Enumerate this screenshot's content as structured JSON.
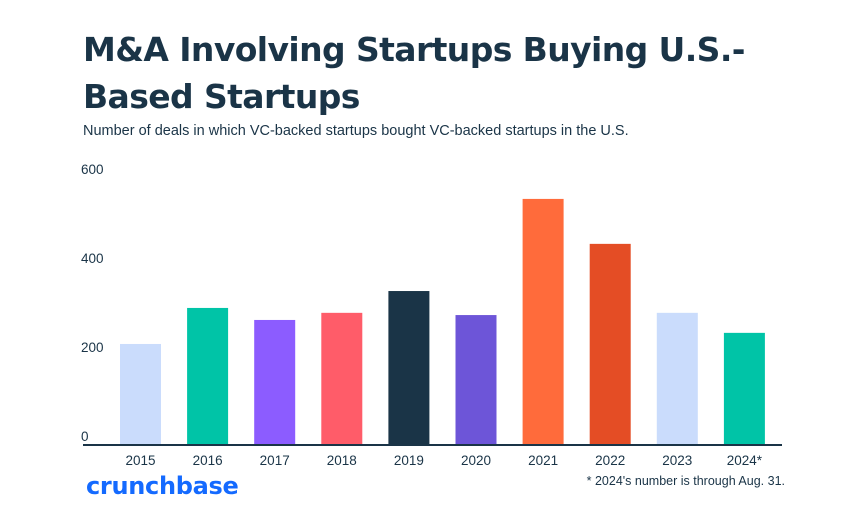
{
  "header": {
    "title": "M&A Involving Startups Buying U.S.-Based Startups",
    "subtitle": "Number of deals in which VC-backed startups bought VC-backed startups in the U.S."
  },
  "footer": {
    "logo": "crunchbase",
    "footnote": "* 2024's number is through Aug. 31."
  },
  "colors": {
    "axis": "#1a3447",
    "text": "#1a3447",
    "brand": "#146aff"
  },
  "chart_data": {
    "type": "bar",
    "title": "M&A Involving Startups Buying U.S.-Based Startups",
    "subtitle": "Number of deals in which VC-backed startups bought VC-backed startups in the U.S.",
    "xlabel": "",
    "ylabel": "",
    "categories": [
      "2015",
      "2016",
      "2017",
      "2018",
      "2019",
      "2020",
      "2021",
      "2022",
      "2023",
      "2024*"
    ],
    "values": [
      227,
      308,
      281,
      297,
      346,
      292,
      553,
      452,
      297,
      252
    ],
    "bar_colors": [
      "#cadcfc",
      "#00c4a7",
      "#8c5cff",
      "#ff5c69",
      "#1a3447",
      "#6d55d8",
      "#ff6b3b",
      "#e44d25",
      "#cadcfc",
      "#00c4a7"
    ],
    "yticks": [
      0,
      200,
      400,
      600
    ],
    "ylim": [
      0,
      600
    ],
    "grid": false,
    "legend": "none",
    "annotations": [
      "* 2024's number is through Aug. 31."
    ]
  }
}
